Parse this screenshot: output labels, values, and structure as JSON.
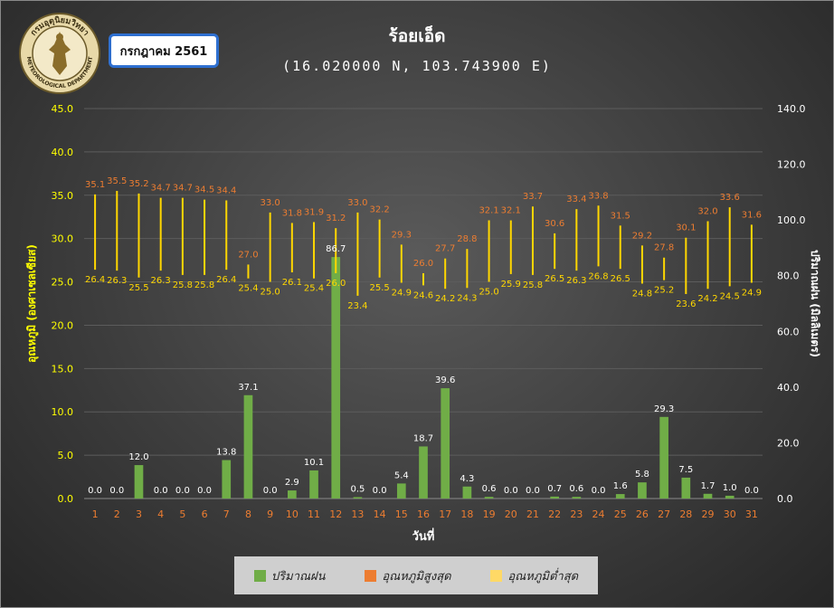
{
  "header": {
    "month_label": "กรกฎาคม 2561",
    "station": "ร้อยเอ็ด",
    "coords": "(16.020000 N, 103.743900 E)"
  },
  "logo": {
    "text_top": "กรมอุตุนิยมวิทยา",
    "text_bottom": "METEOROLOGICAL DEPARTMENT"
  },
  "colors": {
    "rain": "#70ad47",
    "tmax_label": "#ed7d31",
    "tmin_label": "#ffd700",
    "range_line": "#ffd700",
    "left_axis": "#ffff00",
    "xtick": "#ed7d31"
  },
  "legend": {
    "rain": "ปริมาณฝน",
    "tmax": "อุณหภูมิสูงสุด",
    "tmin": "อุณหภูมิต่ำสุด"
  },
  "chart_data": {
    "type": "bar",
    "xlabel": "วันที่",
    "ylabel_left": "อุณหภูมิ (องศาเซลเซียส)",
    "ylabel_right": "ปริมาณฝน (มิลลิเมตร)",
    "ylim_left": [
      0,
      45
    ],
    "ylim_right": [
      0,
      140
    ],
    "yticks_left": [
      "0.0",
      "5.0",
      "10.0",
      "15.0",
      "20.0",
      "25.0",
      "30.0",
      "35.0",
      "40.0",
      "45.0"
    ],
    "yticks_right": [
      "0.0",
      "20.0",
      "40.0",
      "60.0",
      "80.0",
      "100.0",
      "120.0",
      "140.0"
    ],
    "categories": [
      "1",
      "2",
      "3",
      "4",
      "5",
      "6",
      "7",
      "8",
      "9",
      "10",
      "11",
      "12",
      "13",
      "14",
      "15",
      "16",
      "17",
      "18",
      "19",
      "20",
      "21",
      "22",
      "23",
      "24",
      "25",
      "26",
      "27",
      "28",
      "29",
      "30",
      "31"
    ],
    "rain_labels": [
      "0.0",
      "0.0",
      "12.0",
      "0.0",
      "0.0",
      "0.0",
      "13.8",
      "37.1",
      "0.0",
      "2.9",
      "10.1",
      "86.7",
      "0.5",
      "0.0",
      "5.4",
      "18.7",
      "39.6",
      "4.3",
      "0.6",
      "0.0",
      "0.0",
      "0.7",
      "0.6",
      "0.0",
      "1.6",
      "5.8",
      "29.3",
      "7.5",
      "1.7",
      "1.0",
      "0.0"
    ],
    "tmax_labels": [
      "35.1",
      "35.5",
      "35.2",
      "34.7",
      "34.7",
      "34.5",
      "34.4",
      "27.0",
      "33.0",
      "31.8",
      "31.9",
      "31.2",
      "33.0",
      "32.2",
      "29.3",
      "26.0",
      "27.7",
      "28.8",
      "32.1",
      "32.1",
      "33.7",
      "30.6",
      "33.4",
      "33.8",
      "31.5",
      "29.2",
      "27.8",
      "30.1",
      "32.0",
      "33.6",
      "31.6"
    ],
    "tmin_labels": [
      "26.4",
      "26.3",
      "25.5",
      "26.3",
      "25.8",
      "25.8",
      "26.4",
      "25.4",
      "25.0",
      "26.1",
      "25.4",
      "26.0",
      "23.4",
      "25.5",
      "24.9",
      "24.6",
      "24.2",
      "24.3",
      "25.0",
      "25.9",
      "25.8",
      "26.5",
      "26.3",
      "26.8",
      "26.5",
      "24.8",
      "25.2",
      "23.6",
      "24.2",
      "24.5",
      "24.9"
    ]
  }
}
